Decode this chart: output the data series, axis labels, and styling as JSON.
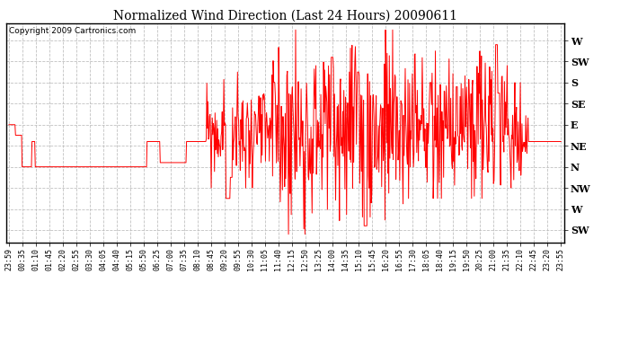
{
  "title": "Normalized Wind Direction (Last 24 Hours) 20090611",
  "copyright": "Copyright 2009 Cartronics.com",
  "background_color": "#ffffff",
  "line_color": "#ff0000",
  "line_width": 0.7,
  "ytick_labels": [
    "W",
    "SW",
    "S",
    "SE",
    "E",
    "NE",
    "N",
    "NW",
    "W",
    "SW"
  ],
  "ytick_values": [
    8,
    7,
    6,
    5,
    4,
    3,
    2,
    1,
    0,
    -1
  ],
  "ylim": [
    -1.6,
    8.8
  ],
  "xtick_labels": [
    "23:59",
    "00:35",
    "01:10",
    "01:45",
    "02:20",
    "02:55",
    "03:30",
    "04:05",
    "04:40",
    "05:15",
    "05:50",
    "06:25",
    "07:00",
    "07:35",
    "08:10",
    "08:45",
    "09:20",
    "09:55",
    "10:30",
    "11:05",
    "11:40",
    "12:15",
    "12:50",
    "13:25",
    "14:00",
    "14:35",
    "15:10",
    "15:45",
    "16:20",
    "16:55",
    "17:30",
    "18:05",
    "18:40",
    "19:15",
    "19:50",
    "20:25",
    "21:00",
    "21:35",
    "22:10",
    "22:45",
    "23:20",
    "23:55"
  ],
  "grid_color": "#bbbbbb",
  "grid_style": "--",
  "grid_alpha": 0.9,
  "n_xticks": 42,
  "title_fontsize": 10,
  "ytick_fontsize": 8,
  "xtick_fontsize": 6
}
